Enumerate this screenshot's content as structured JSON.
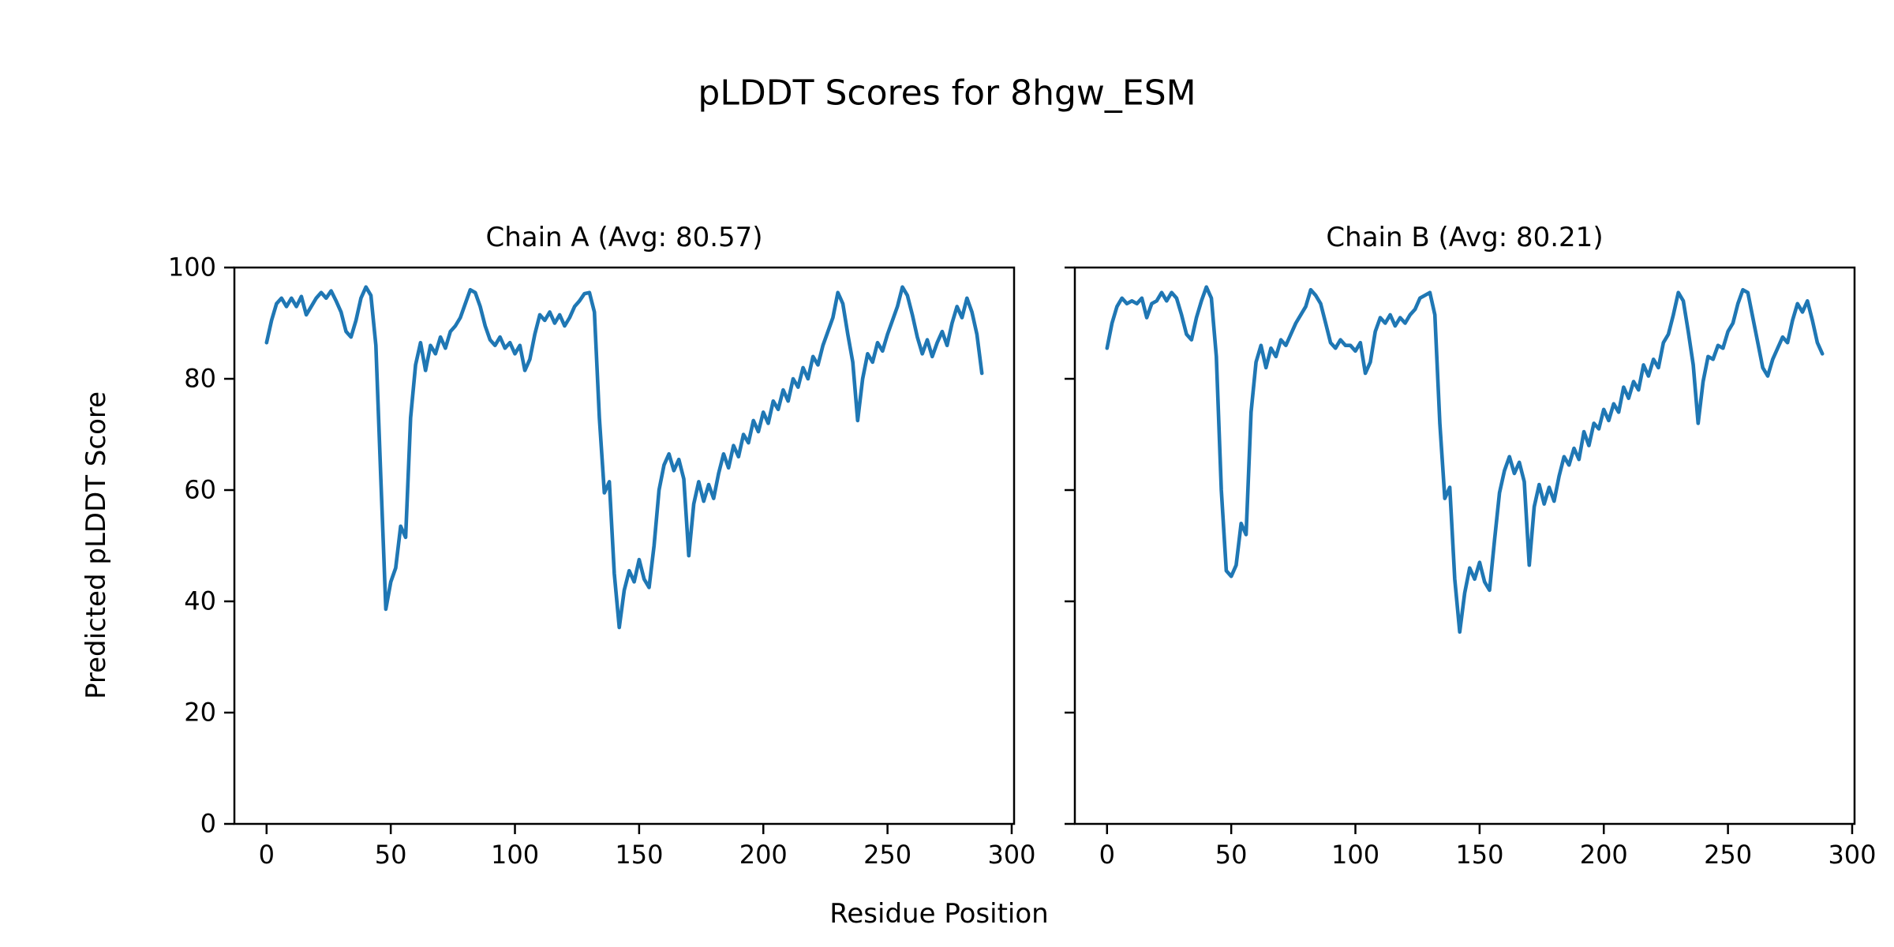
{
  "figure": {
    "title": "pLDDT Scores for 8hgw_ESM",
    "xlabel": "Residue Position",
    "ylabel": "Predicted pLDDT Score",
    "background_color": "#ffffff",
    "text_color": "#000000",
    "line_color": "#1f77b4"
  },
  "chart_data": [
    {
      "type": "line",
      "title": "Chain A (Avg: 80.57)",
      "chain": "A",
      "average_plddt": 80.57,
      "xlabel": "Residue Position",
      "ylabel": "Predicted pLDDT Score",
      "x_start": 0,
      "x_step": 2,
      "x_ticks": [
        0,
        50,
        100,
        150,
        200,
        250,
        300
      ],
      "y_ticks": [
        0,
        20,
        40,
        60,
        80,
        100
      ],
      "ylim": [
        0,
        100
      ],
      "grid": false,
      "legend": "none",
      "series": [
        {
          "name": "pLDDT",
          "color": "#1f77b4",
          "values": [
            86.5,
            90.5,
            93.5,
            94.5,
            93,
            94.5,
            93,
            94.8,
            91.5,
            93,
            94.5,
            95.5,
            94.5,
            95.8,
            94,
            92,
            88.5,
            87.5,
            90.5,
            94.5,
            96.5,
            95,
            86,
            62,
            38.6,
            43.5,
            46,
            53.5,
            51.5,
            73,
            82.5,
            86.5,
            81.5,
            86,
            84.5,
            87.5,
            85.5,
            88.5,
            89.5,
            91,
            93.5,
            96,
            95.5,
            93,
            89.5,
            87,
            86,
            87.5,
            85.5,
            86.5,
            84.5,
            86,
            81.5,
            83.5,
            88,
            91.5,
            90.5,
            92,
            90,
            91.5,
            89.5,
            91,
            93,
            94,
            95.3,
            95.5,
            92,
            73,
            59.5,
            61.5,
            45,
            35.3,
            42,
            45.5,
            43.5,
            47.5,
            44,
            42.5,
            50,
            60,
            64.5,
            66.5,
            63.5,
            65.5,
            62,
            48.2,
            57.5,
            61.5,
            58,
            61,
            58.5,
            63,
            66.5,
            64,
            68,
            66,
            70,
            68.5,
            72.5,
            70.5,
            74,
            72,
            76,
            74.5,
            78,
            76,
            80,
            78.5,
            82,
            80,
            84,
            82.5,
            86,
            88.5,
            91,
            95.5,
            93.5,
            88,
            83,
            72.5,
            80,
            84.5,
            83,
            86.5,
            85,
            88,
            90.5,
            93,
            96.5,
            95,
            91.5,
            87.5,
            84.5,
            87,
            84,
            86.5,
            88.5,
            86,
            90,
            93,
            91,
            94.5,
            92,
            88,
            81
          ]
        }
      ]
    },
    {
      "type": "line",
      "title": "Chain B (Avg: 80.21)",
      "chain": "B",
      "average_plddt": 80.21,
      "xlabel": "Residue Position",
      "ylabel": "Predicted pLDDT Score",
      "x_start": 0,
      "x_step": 2,
      "x_ticks": [
        0,
        50,
        100,
        150,
        200,
        250,
        300
      ],
      "y_ticks": [
        0,
        20,
        40,
        60,
        80,
        100
      ],
      "ylim": [
        0,
        100
      ],
      "grid": false,
      "legend": "none",
      "series": [
        {
          "name": "pLDDT",
          "color": "#1f77b4",
          "values": [
            85.5,
            90,
            93,
            94.5,
            93.5,
            94,
            93.5,
            94.5,
            91,
            93.5,
            94,
            95.5,
            94,
            95.5,
            94.5,
            91.5,
            88,
            87,
            91,
            94,
            96.5,
            94.5,
            84,
            60,
            45.5,
            44.5,
            46.5,
            54,
            52,
            74,
            83,
            86,
            82,
            85.5,
            84,
            87,
            86,
            88,
            90,
            91.5,
            93,
            96,
            95,
            93.5,
            90,
            86.5,
            85.5,
            87,
            86,
            86,
            85,
            86.5,
            81,
            83,
            88.5,
            91,
            90,
            91.5,
            89.5,
            91,
            90,
            91.5,
            92.5,
            94.5,
            95,
            95.5,
            91.5,
            72,
            58.5,
            60.5,
            44,
            34.5,
            41.5,
            46,
            44,
            47,
            43.5,
            42,
            51,
            59.5,
            63.5,
            66,
            63,
            65,
            61.5,
            46.5,
            57,
            61,
            57.5,
            60.5,
            58,
            62.5,
            66,
            64.5,
            67.5,
            65.5,
            70.5,
            68,
            72,
            71,
            74.5,
            72.5,
            75.5,
            74,
            78.5,
            76.5,
            79.5,
            78,
            82.5,
            80.5,
            83.5,
            82,
            86.5,
            88,
            91.5,
            95.5,
            94,
            88.5,
            82.5,
            72,
            79.5,
            84,
            83.5,
            86,
            85.5,
            88.5,
            90,
            93.5,
            96,
            95.5,
            91,
            86.5,
            82,
            80.5,
            83.5,
            85.5,
            87.5,
            86.5,
            90.5,
            93.5,
            92,
            94,
            90.5,
            86.5,
            84.5
          ]
        }
      ]
    }
  ]
}
